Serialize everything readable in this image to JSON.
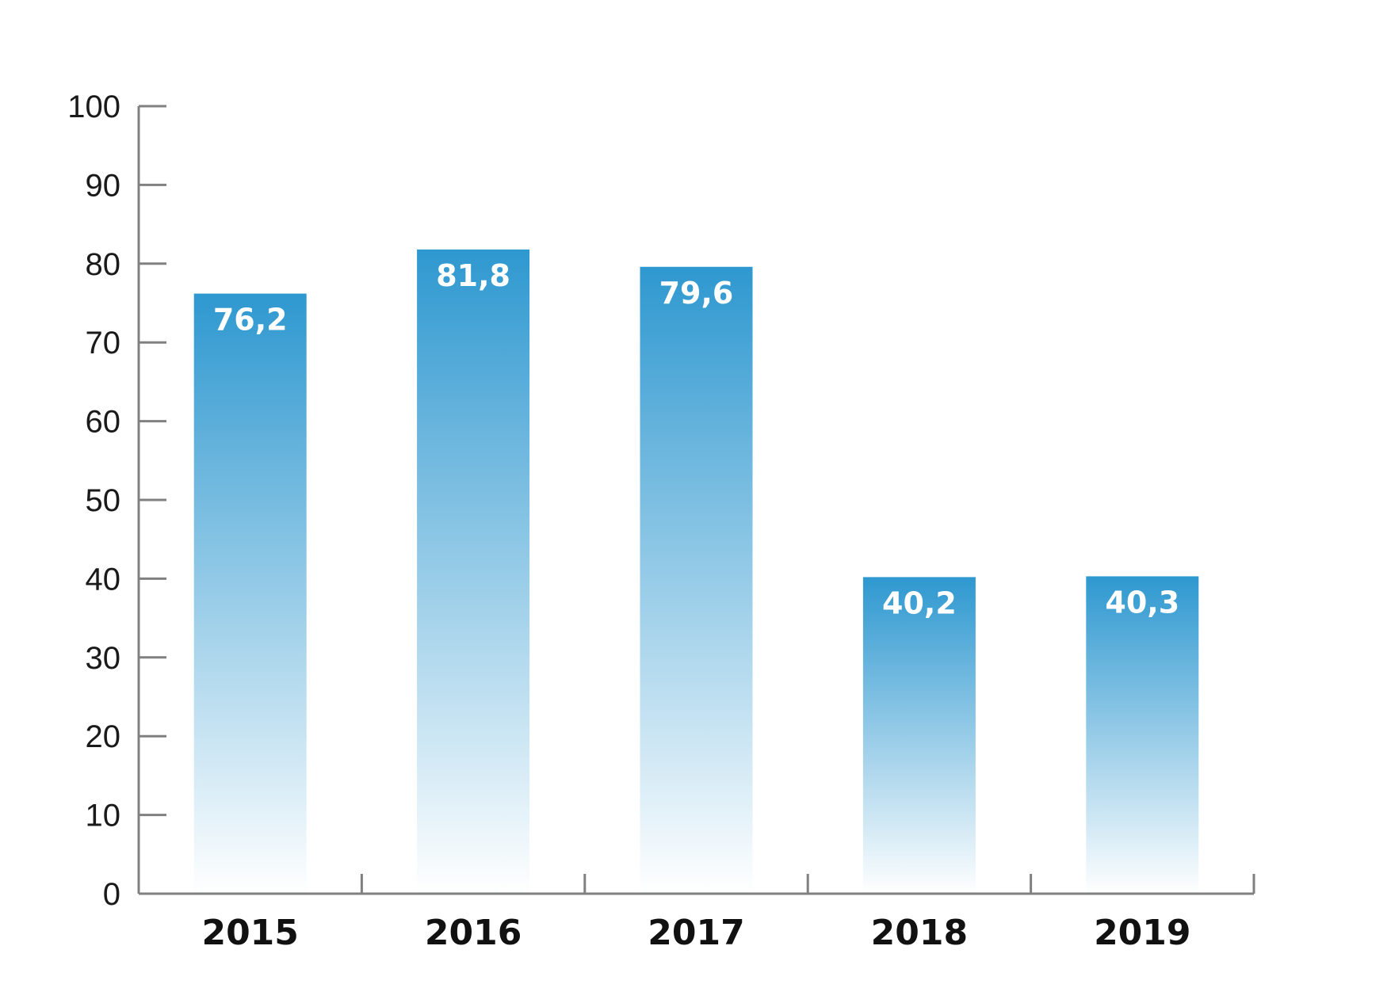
{
  "chart_data": {
    "type": "bar",
    "categories": [
      "2015",
      "2016",
      "2017",
      "2018",
      "2019"
    ],
    "values": [
      76.2,
      81.8,
      79.6,
      40.2,
      40.3
    ],
    "value_labels": [
      "76,2",
      "81,8",
      "79,6",
      "40,2",
      "40,3"
    ],
    "title": "",
    "xlabel": "",
    "ylabel": "",
    "ylim": [
      0,
      100
    ],
    "yticks": [
      0,
      10,
      20,
      30,
      40,
      50,
      60,
      70,
      80,
      90,
      100
    ],
    "ytick_labels": [
      "0",
      "10",
      "20",
      "30",
      "40",
      "50",
      "60",
      "70",
      "80",
      "90",
      "100"
    ],
    "grid": false,
    "legend": "none",
    "colors": {
      "bar_top": "#2E98D0",
      "bar_bottom": "#FFFFFF",
      "axis": "#808080"
    }
  }
}
